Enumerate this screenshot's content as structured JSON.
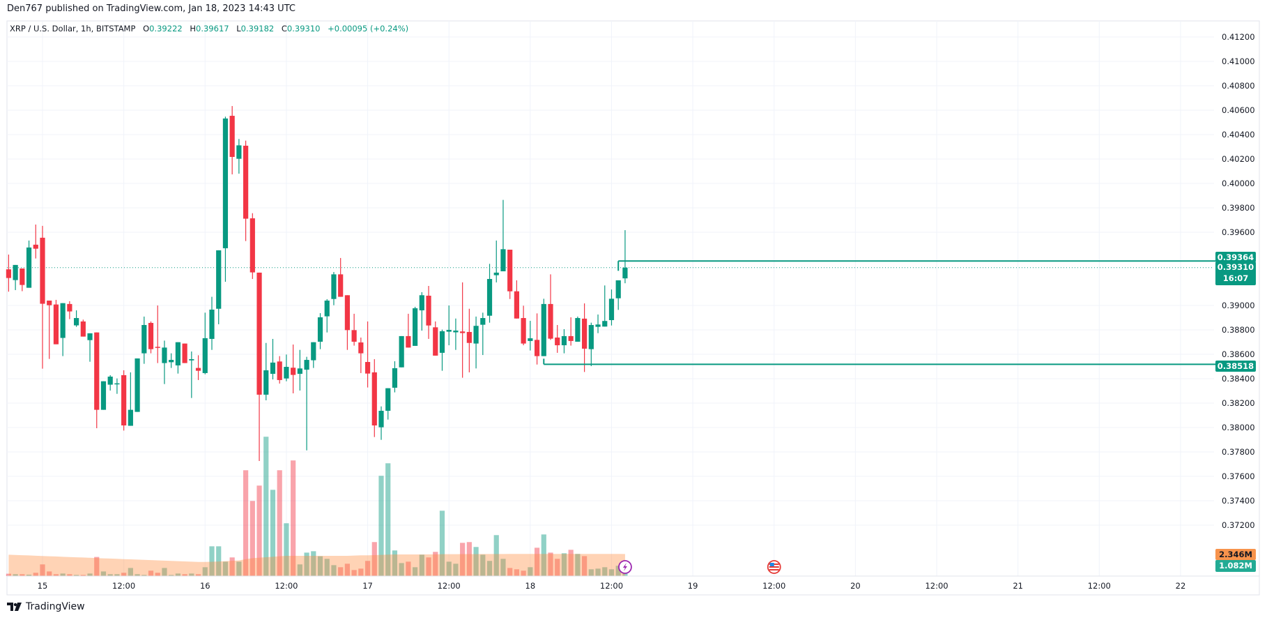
{
  "header": {
    "published": "Den767 published on TradingView.com, Jan 18, 2023 14:43 UTC",
    "symbol": "XRP / U.S. Dollar, 1h, BITSTAMP",
    "o_label": "O",
    "o": "0.39222",
    "h_label": "H",
    "h": "0.39617",
    "l_label": "L",
    "l": "0.39182",
    "c_label": "C",
    "c": "0.39310",
    "change": "+0.00095 (+0.24%)"
  },
  "colors": {
    "up": "#089981",
    "down": "#f23645",
    "volume_ma": "#ff9850",
    "grid": "#f0f3fa",
    "border": "#e0e3eb"
  },
  "chart_data": {
    "type": "candlestick",
    "interval": "1h",
    "ylim": [
      0.371,
      0.413
    ],
    "price_ticks": [
      "0.41200",
      "0.41000",
      "0.40800",
      "0.40600",
      "0.40400",
      "0.40200",
      "0.40000",
      "0.39800",
      "0.39600",
      "0.39000",
      "0.38800",
      "0.38600",
      "0.38400",
      "0.38200",
      "0.38000",
      "0.37800",
      "0.37600",
      "0.37400",
      "0.37200"
    ],
    "time_ticks": [
      {
        "label": "15",
        "t": "2023-01-15 00:00"
      },
      {
        "label": "12:00",
        "t": "2023-01-15 12:00"
      },
      {
        "label": "16",
        "t": "2023-01-16 00:00"
      },
      {
        "label": "12:00",
        "t": "2023-01-16 12:00"
      },
      {
        "label": "17",
        "t": "2023-01-17 00:00"
      },
      {
        "label": "12:00",
        "t": "2023-01-17 12:00"
      },
      {
        "label": "18",
        "t": "2023-01-18 00:00"
      },
      {
        "label": "12:00",
        "t": "2023-01-18 12:00"
      },
      {
        "label": "19",
        "t": "2023-01-19 00:00"
      },
      {
        "label": "12:00",
        "t": "2023-01-19 12:00"
      },
      {
        "label": "20",
        "t": "2023-01-20 00:00"
      },
      {
        "label": "12:00",
        "t": "2023-01-20 12:00"
      },
      {
        "label": "21",
        "t": "2023-01-21 00:00"
      },
      {
        "label": "12:00",
        "t": "2023-01-21 12:00"
      },
      {
        "label": "22",
        "t": "2023-01-22 00:00"
      }
    ],
    "candles_columns": [
      "time",
      "open",
      "high",
      "low",
      "close",
      "volume_M"
    ],
    "candles": [
      [
        "2023-01-14 19:00",
        0.39296,
        0.39417,
        0.39113,
        0.39225,
        0.25
      ],
      [
        "2023-01-14 20:00",
        0.39208,
        0.39332,
        0.39126,
        0.39332,
        0.2
      ],
      [
        "2023-01-14 21:00",
        0.39303,
        0.39303,
        0.39117,
        0.39168,
        0.2
      ],
      [
        "2023-01-14 22:00",
        0.39145,
        0.39532,
        0.39145,
        0.39475,
        0.15
      ],
      [
        "2023-01-14 23:00",
        0.39498,
        0.39663,
        0.39385,
        0.39465,
        0.35
      ],
      [
        "2023-01-15 00:00",
        0.39555,
        0.39652,
        0.38482,
        0.39014,
        1.24
      ],
      [
        "2023-01-15 01:00",
        0.3904,
        0.3904,
        0.38562,
        0.39002,
        0.49
      ],
      [
        "2023-01-15 02:00",
        0.39008,
        0.39046,
        0.38682,
        0.38682,
        0.2
      ],
      [
        "2023-01-15 03:00",
        0.38734,
        0.39019,
        0.38585,
        0.39019,
        0.27
      ],
      [
        "2023-01-15 04:00",
        0.39012,
        0.39035,
        0.38888,
        0.38951,
        0.2
      ],
      [
        "2023-01-15 05:00",
        0.38837,
        0.3896,
        0.38825,
        0.38897,
        0.12
      ],
      [
        "2023-01-15 06:00",
        0.38869,
        0.38884,
        0.38745,
        0.38745,
        0.12
      ],
      [
        "2023-01-15 07:00",
        0.38716,
        0.38772,
        0.38539,
        0.38772,
        0.27
      ],
      [
        "2023-01-15 08:00",
        0.38779,
        0.38779,
        0.37994,
        0.38145,
        2.03
      ],
      [
        "2023-01-15 09:00",
        0.38145,
        0.38379,
        0.38145,
        0.38379,
        0.49
      ],
      [
        "2023-01-15 10:00",
        0.38351,
        0.38429,
        0.38303,
        0.38417,
        0.2
      ],
      [
        "2023-01-15 11:00",
        0.38355,
        0.38402,
        0.38276,
        0.38362,
        0.2
      ],
      [
        "2023-01-15 12:00",
        0.38429,
        0.38469,
        0.37975,
        0.38017,
        0.35
      ],
      [
        "2023-01-15 13:00",
        0.38014,
        0.38452,
        0.38014,
        0.38145,
        0.86
      ],
      [
        "2023-01-15 14:00",
        0.38128,
        0.38566,
        0.38128,
        0.38566,
        0.2
      ],
      [
        "2023-01-15 15:00",
        0.38608,
        0.38909,
        0.38522,
        0.3884,
        0.12
      ],
      [
        "2023-01-15 16:00",
        0.38857,
        0.38869,
        0.38608,
        0.38642,
        0.57
      ],
      [
        "2023-01-15 17:00",
        0.38661,
        0.39,
        0.38528,
        0.38654,
        0.35
      ],
      [
        "2023-01-15 18:00",
        0.38528,
        0.38712,
        0.38356,
        0.38655,
        0.86
      ],
      [
        "2023-01-15 19:00",
        0.38535,
        0.38608,
        0.38488,
        0.38554,
        0.12
      ],
      [
        "2023-01-15 20:00",
        0.38509,
        0.38699,
        0.38442,
        0.38699,
        0.27
      ],
      [
        "2023-01-15 21:00",
        0.38688,
        0.38688,
        0.38528,
        0.38528,
        0.2
      ],
      [
        "2023-01-15 22:00",
        0.3855,
        0.38623,
        0.38242,
        0.3856,
        0.27
      ],
      [
        "2023-01-15 23:00",
        0.38488,
        0.38592,
        0.38389,
        0.38465,
        0.2
      ],
      [
        "2023-01-16 00:00",
        0.38446,
        0.38941,
        0.38436,
        0.38732,
        0.94
      ],
      [
        "2023-01-16 01:00",
        0.38726,
        0.39071,
        0.38636,
        0.38966,
        3.16
      ],
      [
        "2023-01-16 02:00",
        0.38973,
        0.39452,
        0.38846,
        0.39452,
        3.16
      ],
      [
        "2023-01-16 03:00",
        0.39469,
        0.40547,
        0.39194,
        0.40532,
        1.53
      ],
      [
        "2023-01-16 04:00",
        0.40554,
        0.40634,
        0.40074,
        0.40217,
        1.98
      ],
      [
        "2023-01-16 05:00",
        0.40202,
        0.40364,
        0.4008,
        0.40312,
        1.53
      ],
      [
        "2023-01-16 06:00",
        0.40309,
        0.40351,
        0.39528,
        0.39711,
        11.24
      ],
      [
        "2023-01-16 07:00",
        0.39714,
        0.39756,
        0.39217,
        0.39271,
        7.98
      ],
      [
        "2023-01-16 08:00",
        0.39269,
        0.39269,
        0.37726,
        0.38269,
        9.61
      ],
      [
        "2023-01-16 09:00",
        0.38269,
        0.38693,
        0.38223,
        0.38469,
        14.8
      ],
      [
        "2023-01-16 10:00",
        0.3844,
        0.38726,
        0.38394,
        0.38532,
        9.16
      ],
      [
        "2023-01-16 11:00",
        0.38541,
        0.38585,
        0.3836,
        0.38389,
        11.24
      ],
      [
        "2023-01-16 12:00",
        0.38402,
        0.38598,
        0.38379,
        0.38497,
        5.61
      ],
      [
        "2023-01-16 13:00",
        0.3849,
        0.3868,
        0.3828,
        0.38431,
        12.28
      ],
      [
        "2023-01-16 14:00",
        0.3844,
        0.38636,
        0.38303,
        0.38484,
        1.24
      ],
      [
        "2023-01-16 15:00",
        0.38474,
        0.38579,
        0.37813,
        0.38554,
        2.49
      ],
      [
        "2023-01-16 16:00",
        0.38551,
        0.38699,
        0.38488,
        0.38699,
        2.64
      ],
      [
        "2023-01-16 17:00",
        0.38703,
        0.38937,
        0.38642,
        0.38903,
        2.1
      ],
      [
        "2023-01-16 18:00",
        0.38911,
        0.39052,
        0.38779,
        0.3904,
        1.83
      ],
      [
        "2023-01-16 19:00",
        0.39053,
        0.39274,
        0.39002,
        0.39255,
        1.16
      ],
      [
        "2023-01-16 20:00",
        0.39255,
        0.39389,
        0.39071,
        0.39071,
        0.94
      ],
      [
        "2023-01-16 21:00",
        0.39084,
        0.39084,
        0.38636,
        0.38798,
        1.31
      ],
      [
        "2023-01-16 22:00",
        0.38798,
        0.38932,
        0.38671,
        0.38703,
        0.64
      ],
      [
        "2023-01-16 23:00",
        0.38697,
        0.38737,
        0.38446,
        0.38608,
        0.79
      ],
      [
        "2023-01-17 00:00",
        0.38537,
        0.38869,
        0.38328,
        0.38442,
        1.61
      ],
      [
        "2023-01-17 01:00",
        0.38452,
        0.3856,
        0.37922,
        0.38017,
        3.61
      ],
      [
        "2023-01-17 02:00",
        0.38002,
        0.38173,
        0.37899,
        0.38137,
        10.65
      ],
      [
        "2023-01-17 03:00",
        0.38137,
        0.38322,
        0.38065,
        0.38322,
        11.98
      ],
      [
        "2023-01-17 04:00",
        0.38326,
        0.38543,
        0.38288,
        0.38486,
        2.72
      ],
      [
        "2023-01-17 05:00",
        0.38493,
        0.38749,
        0.38493,
        0.38749,
        1.38
      ],
      [
        "2023-01-17 06:00",
        0.38749,
        0.38932,
        0.38655,
        0.38655,
        1.53
      ],
      [
        "2023-01-17 07:00",
        0.38669,
        0.38989,
        0.38669,
        0.38977,
        0.94
      ],
      [
        "2023-01-17 08:00",
        0.3896,
        0.39109,
        0.38794,
        0.39084,
        2.27
      ],
      [
        "2023-01-17 09:00",
        0.3908,
        0.3916,
        0.38726,
        0.38836,
        1.98
      ],
      [
        "2023-01-17 10:00",
        0.38821,
        0.38869,
        0.38589,
        0.38589,
        2.57
      ],
      [
        "2023-01-17 11:00",
        0.38612,
        0.38802,
        0.38465,
        0.38789,
        6.94
      ],
      [
        "2023-01-17 12:00",
        0.38785,
        0.39,
        0.38674,
        0.388,
        1.53
      ],
      [
        "2023-01-17 13:00",
        0.3878,
        0.38893,
        0.38636,
        0.38794,
        1.31
      ],
      [
        "2023-01-17 14:00",
        0.38787,
        0.39189,
        0.38408,
        0.38774,
        3.53
      ],
      [
        "2023-01-17 15:00",
        0.38783,
        0.38973,
        0.38452,
        0.38693,
        3.61
      ],
      [
        "2023-01-17 16:00",
        0.38688,
        0.38909,
        0.38484,
        0.38833,
        3.09
      ],
      [
        "2023-01-17 17:00",
        0.38842,
        0.38941,
        0.38594,
        0.38897,
        2.27
      ],
      [
        "2023-01-17 18:00",
        0.38916,
        0.39341,
        0.38859,
        0.39217,
        1.61
      ],
      [
        "2023-01-17 19:00",
        0.39248,
        0.39532,
        0.39189,
        0.39269,
        4.35
      ],
      [
        "2023-01-17 20:00",
        0.3928,
        0.39865,
        0.3928,
        0.39461,
        1.83
      ],
      [
        "2023-01-17 21:00",
        0.39457,
        0.39457,
        0.39053,
        0.39116,
        0.86
      ],
      [
        "2023-01-17 22:00",
        0.39116,
        0.39206,
        0.38893,
        0.38893,
        0.72
      ],
      [
        "2023-01-17 23:00",
        0.38897,
        0.38998,
        0.38674,
        0.38688,
        0.57
      ],
      [
        "2023-01-18 00:00",
        0.38709,
        0.38874,
        0.38631,
        0.38731,
        0.94
      ],
      [
        "2023-01-18 01:00",
        0.38718,
        0.38935,
        0.38516,
        0.38585,
        3.01
      ],
      [
        "2023-01-18 02:00",
        0.38585,
        0.39055,
        0.38585,
        0.39012,
        4.42
      ],
      [
        "2023-01-18 03:00",
        0.39012,
        0.39255,
        0.38718,
        0.38728,
        2.49
      ],
      [
        "2023-01-18 04:00",
        0.38737,
        0.3884,
        0.38612,
        0.38674,
        1.83
      ],
      [
        "2023-01-18 05:00",
        0.38674,
        0.38806,
        0.38608,
        0.38749,
        2.42
      ],
      [
        "2023-01-18 06:00",
        0.38749,
        0.38903,
        0.38671,
        0.38709,
        2.79
      ],
      [
        "2023-01-18 07:00",
        0.38703,
        0.38909,
        0.38703,
        0.38897,
        2.35
      ],
      [
        "2023-01-18 08:00",
        0.38892,
        0.39017,
        0.38455,
        0.38646,
        2.12
      ],
      [
        "2023-01-18 09:00",
        0.38642,
        0.38859,
        0.38503,
        0.3884,
        0.72
      ],
      [
        "2023-01-18 10:00",
        0.38825,
        0.38926,
        0.38773,
        0.38844,
        0.79
      ],
      [
        "2023-01-18 11:00",
        0.38827,
        0.39164,
        0.38827,
        0.38873,
        0.94
      ],
      [
        "2023-01-18 12:00",
        0.3888,
        0.39131,
        0.38836,
        0.39055,
        0.72
      ],
      [
        "2023-01-18 13:00",
        0.39059,
        0.39206,
        0.38964,
        0.39206,
        1.09
      ],
      [
        "2023-01-18 14:00",
        0.39222,
        0.39617,
        0.39182,
        0.3931,
        1.082
      ]
    ],
    "volume_ma_M": [
      2.27,
      2.24,
      2.21,
      2.19,
      2.16,
      2.13,
      2.1,
      2.08,
      2.05,
      2.02,
      1.99,
      1.97,
      1.94,
      1.91,
      1.88,
      1.86,
      1.83,
      1.8,
      1.78,
      1.75,
      1.72,
      1.69,
      1.67,
      1.64,
      1.61,
      1.58,
      1.56,
      1.53,
      1.5,
      1.5,
      1.52,
      1.55,
      1.58,
      1.62,
      1.66,
      1.8,
      1.9,
      1.95,
      2.0,
      2.05,
      2.1,
      2.15,
      2.15,
      2.15,
      2.15,
      2.15,
      2.15,
      2.15,
      2.15,
      2.15,
      2.15,
      2.18,
      2.2,
      2.2,
      2.22,
      2.25,
      2.28,
      2.3,
      2.3,
      2.3,
      2.3,
      2.3,
      2.31,
      2.31,
      2.32,
      2.32,
      2.32,
      2.33,
      2.33,
      2.33,
      2.34,
      2.34,
      2.34,
      2.34,
      2.35,
      2.35,
      2.35,
      2.35,
      2.35,
      2.35,
      2.35,
      2.35,
      2.35,
      2.35,
      2.35,
      2.35,
      2.35,
      2.35,
      2.35,
      2.35,
      2.35,
      2.346
    ],
    "levels": [
      {
        "price": "0.39364",
        "from": "2023-01-18 13:00"
      },
      {
        "price": "0.38518",
        "from": "2023-01-18 02:00"
      }
    ],
    "last_price": "0.39310",
    "countdown": "16:07",
    "volume_ma_label": "2.346M",
    "volume_label": "1.082M"
  },
  "events": [
    {
      "icon": "lightning-icon",
      "t": "2023-01-18 14:00"
    },
    {
      "icon": "us-flag-icon",
      "t": "2023-01-19 12:00"
    }
  ],
  "footer": {
    "brand": "TradingView"
  }
}
